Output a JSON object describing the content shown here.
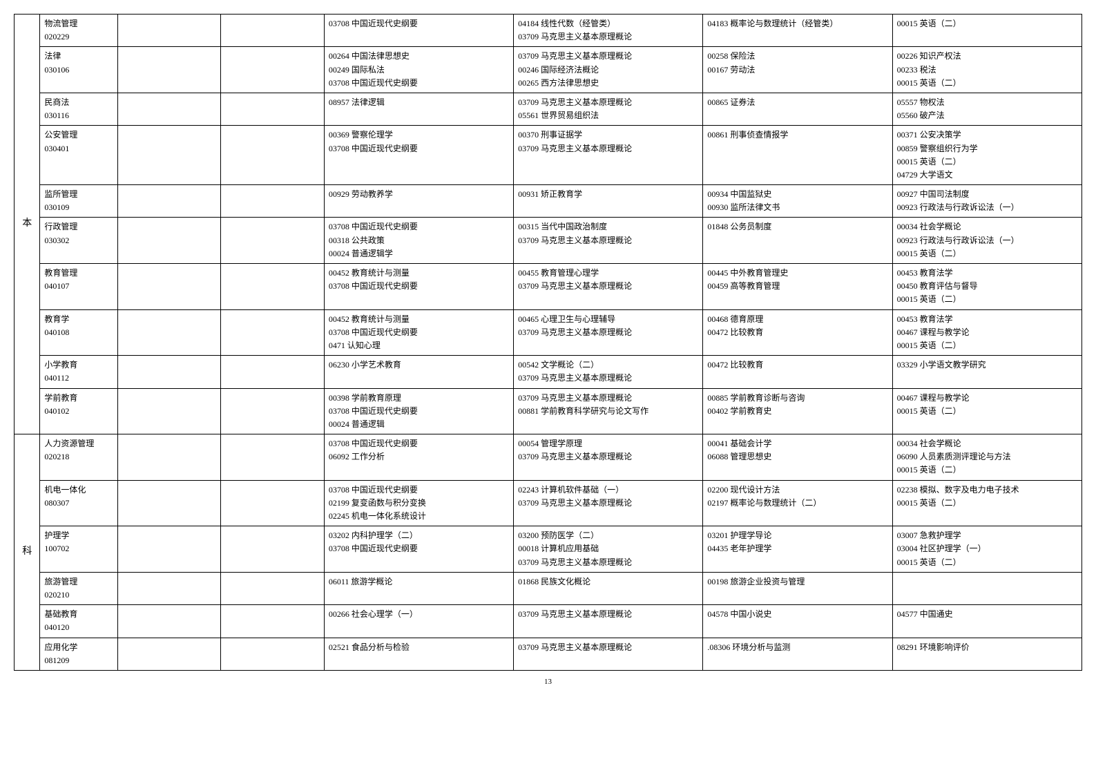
{
  "side_labels": [
    "本",
    "科"
  ],
  "page_number": "13",
  "rows": [
    {
      "major": "物流管理\n020229",
      "c1": "",
      "c2": "",
      "c3": "03708 中国近现代史纲要",
      "c4": "04184 线性代数（经管类）\n03709 马克思主义基本原理概论",
      "c5": "04183 概率论与数理统计（经管类）",
      "c6": "00015 英语（二）"
    },
    {
      "major": "法律\n030106",
      "c1": "",
      "c2": "",
      "c3": "00264 中国法律思想史\n00249  国际私法\n03708 中国近现代史纲要",
      "c4": "03709 马克思主义基本原理概论\n00246 国际经济法概论\n00265 西方法律思想史",
      "c5": "00258 保险法\n00167  劳动法",
      "c6": "00226 知识产权法\n00233 税法\n00015 英语（二）"
    },
    {
      "major": "民商法\n030116",
      "c1": "",
      "c2": "",
      "c3": "08957 法律逻辑",
      "c4": "03709 马克思主义基本原理概论\n05561 世界贸易组织法",
      "c5": "00865 证券法",
      "c6": "05557 物权法\n05560 破产法"
    },
    {
      "major": "公安管理\n030401",
      "c1": "",
      "c2": "",
      "c3": "00369 警察伦理学\n03708 中国近现代史纲要",
      "c4": "00370 刑事证据学\n03709 马克思主义基本原理概论",
      "c5": "00861 刑事侦查情报学",
      "c6": "00371 公安决策学\n00859 警察组织行为学\n00015 英语（二）\n04729 大学语文"
    },
    {
      "major": "监所管理\n030109",
      "c1": "",
      "c2": "",
      "c3": "00929 劳动教养学",
      "c4": "00931 矫正教育学",
      "c5": "00934 中国监狱史\n00930 监所法律文书",
      "c6": "00927 中国司法制度\n00923 行政法与行政诉讼法（一）"
    },
    {
      "major": "行政管理\n030302",
      "c1": "",
      "c2": "",
      "c3": "03708 中国近现代史纲要\n00318 公共政策\n00024 普通逻辑学",
      "c4": "00315 当代中国政治制度\n03709 马克思主义基本原理概论",
      "c5": "01848 公务员制度",
      "c6": "00034 社会学概论\n00923 行政法与行政诉讼法（一）\n00015 英语（二）"
    },
    {
      "major": "教育管理\n040107",
      "c1": "",
      "c2": "",
      "c3": "00452 教育统计与测量\n03708 中国近现代史纲要",
      "c4": "00455 教育管理心理学\n03709 马克思主义基本原理概论",
      "c5": "00445 中外教育管理史\n    00459 高等教育管理",
      "c6": "00453 教育法学\n00450 教育评估与督导\n00015 英语（二）"
    },
    {
      "major": "教育学\n040108",
      "c1": "",
      "c2": "",
      "c3": "00452 教育统计与测量\n03708 中国近现代史纲要\n0471 认知心理",
      "c4": "00465 心理卫生与心理辅导\n03709 马克思主义基本原理概论",
      "c5": "00468 德育原理\n00472 比较教育",
      "c6": "00453 教育法学\n00467 课程与教学论\n00015 英语（二）"
    },
    {
      "major": "小学教育\n040112",
      "c1": "",
      "c2": "",
      "c3": "06230 小学艺术教育",
      "c4": "00542 文学概论（二）\n03709 马克思主义基本原理概论",
      "c5": "00472 比较教育",
      "c6": "03329 小学语文教学研究"
    },
    {
      "major": "学前教育\n040102",
      "c1": "",
      "c2": "",
      "c3": "00398 学前教育原理\n03708 中国近现代史纲要\n00024 普通逻辑",
      "c4": "03709 马克思主义基本原理概论\n00881 学前教育科学研究与论文写作",
      "c5": "00885 学前教育诊断与咨询\n00402 学前教育史",
      "c6": "00467 课程与教学论\n00015 英语（二）"
    },
    {
      "major": "人力资源管理\n020218",
      "c1": "",
      "c2": "",
      "c3": "03708 中国近现代史纲要\n06092 工作分析",
      "c4": "00054 管理学原理\n03709 马克思主义基本原理概论",
      "c5": "00041 基础会计学\n06088 管理思想史",
      "c6": "00034 社会学概论\n06090 人员素质测评理论与方法\n00015 英语（二）"
    },
    {
      "major": "机电一体化\n080307",
      "c1": "",
      "c2": "",
      "c3": "03708 中国近现代史纲要\n02199 复变函数与积分变换\n02245 机电一体化系统设计",
      "c4": "02243 计算机软件基础（一）\n03709 马克思主义基本原理概论",
      "c5": "02200 现代设计方法\n02197 概率论与数理统计（二）",
      "c6": "02238 模拟、数字及电力电子技术\n00015 英语（二）"
    },
    {
      "major": "护理学\n100702",
      "c1": "",
      "c2": "",
      "c3": "03202 内科护理学（二）\n03708 中国近现代史纲要",
      "c4": "03200 预防医学（二）\n00018 计算机应用基础\n03709 马克思主义基本原理概论",
      "c5": "03201 护理学导论\n04435 老年护理学",
      "c6": "03007 急救护理学\n03004 社区护理学（一）\n00015 英语（二）"
    },
    {
      "major": "旅游管理\n020210",
      "c1": "",
      "c2": "",
      "c3": "06011 旅游学概论",
      "c4": "01868 民族文化概论",
      "c5": "00198 旅游企业投资与管理",
      "c6": ""
    },
    {
      "major": "基础教育\n040120",
      "c1": "",
      "c2": "",
      "c3": "00266 社会心理学（一）",
      "c4": "03709 马克思主义基本原理概论",
      "c5": "04578 中国小说史",
      "c6": "04577 中国通史"
    },
    {
      "major": "应用化学\n081209",
      "c1": "",
      "c2": "",
      "c3": "02521 食品分析与检验",
      "c4": "03709 马克思主义基本原理概论",
      "c5": ".08306 环境分析与监测",
      "c6": "08291 环境影响评价"
    }
  ]
}
